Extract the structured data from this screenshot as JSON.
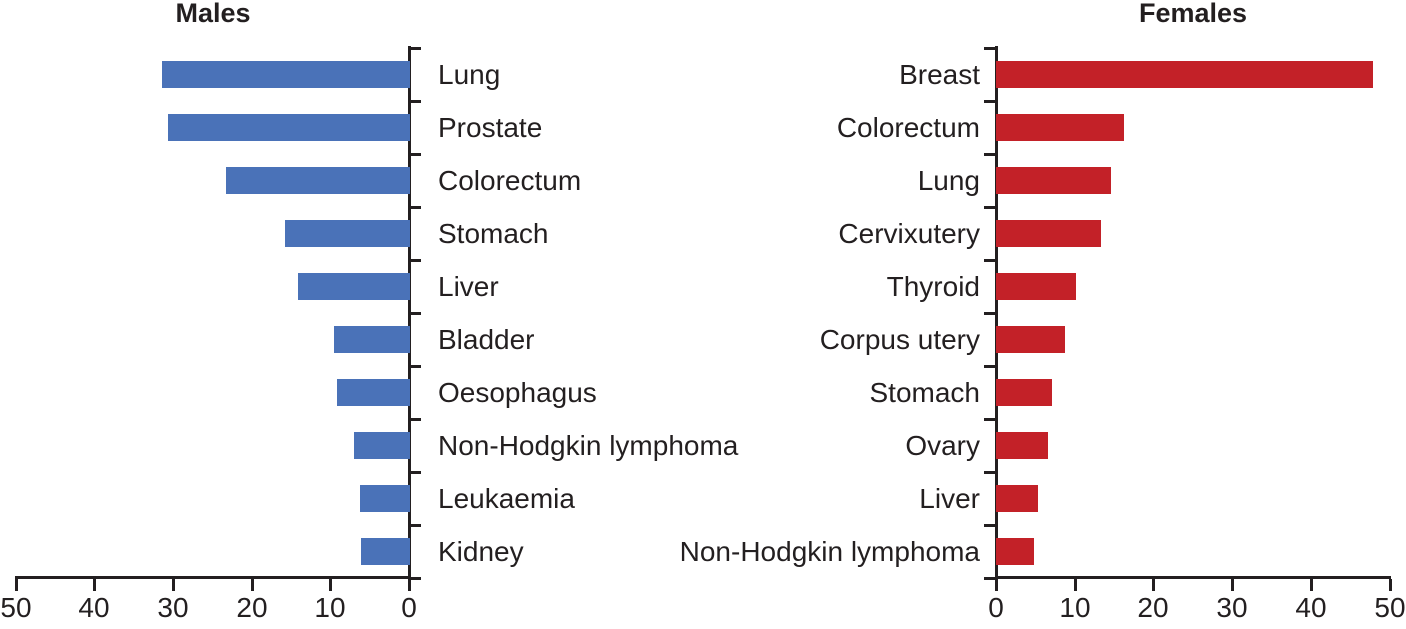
{
  "figure": {
    "background": "#ffffff",
    "text_color": "#231f20",
    "axis_color": "#231f20"
  },
  "chart_data": [
    {
      "type": "bar",
      "orientation": "horizontal",
      "title": "Males",
      "side": "left",
      "bar_color": "#4a72b8",
      "axis_color": "#231f20",
      "xlabel": "",
      "ylabel": "",
      "xlim": [
        0,
        50
      ],
      "xticks": [
        50,
        40,
        30,
        20,
        10,
        0
      ],
      "x_axis_reversed": true,
      "bars_anchored": "right",
      "grid": false,
      "legend": false,
      "categories": [
        "Lung",
        "Prostate",
        "Colorectum",
        "Stomach",
        "Liver",
        "Bladder",
        "Oesophagus",
        "Non-Hodgkin lymphoma",
        "Leukaemia",
        "Kidney"
      ],
      "values": [
        31.5,
        30.7,
        23.4,
        15.9,
        14.2,
        9.6,
        9.3,
        7.1,
        6.3,
        6.2
      ]
    },
    {
      "type": "bar",
      "orientation": "horizontal",
      "title": "Females",
      "side": "right",
      "bar_color": "#c32128",
      "axis_color": "#231f20",
      "xlabel": "",
      "ylabel": "",
      "xlim": [
        0,
        50
      ],
      "xticks": [
        0,
        10,
        20,
        30,
        40,
        50
      ],
      "x_axis_reversed": false,
      "bars_anchored": "left",
      "grid": false,
      "legend": false,
      "categories": [
        "Breast",
        "Colorectum",
        "Lung",
        "Cervixutery",
        "Thyroid",
        "Corpus utery",
        "Stomach",
        "Ovary",
        "Liver",
        "Non-Hodgkin lymphoma"
      ],
      "values": [
        47.9,
        16.3,
        14.6,
        13.4,
        10.2,
        8.8,
        7.1,
        6.6,
        5.4,
        4.8
      ]
    }
  ]
}
